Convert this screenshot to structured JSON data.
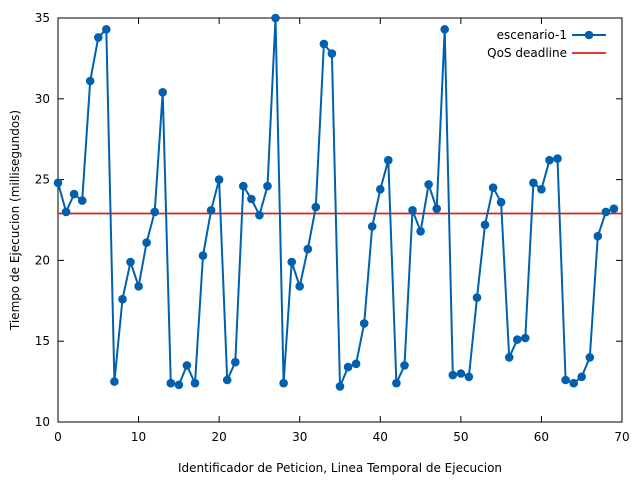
{
  "chart_data": {
    "type": "line",
    "title": "",
    "xlabel": "Identificador de Peticion, Linea Temporal de Ejecucion",
    "ylabel": "Tiempo de Ejecucion (millisegundos)",
    "xlim": [
      0,
      70
    ],
    "ylim": [
      10,
      35
    ],
    "x_ticks": [
      0,
      10,
      20,
      30,
      40,
      50,
      60,
      70
    ],
    "y_ticks": [
      10,
      15,
      20,
      25,
      30,
      35
    ],
    "grid": false,
    "legend_position": "top-right",
    "series": [
      {
        "name": "escenario-1",
        "color": "#0060ad",
        "marker": "circle",
        "x": [
          0,
          1,
          2,
          3,
          4,
          5,
          6,
          7,
          8,
          9,
          10,
          11,
          12,
          13,
          14,
          15,
          16,
          17,
          18,
          19,
          20,
          21,
          22,
          23,
          24,
          25,
          26,
          27,
          28,
          29,
          30,
          31,
          32,
          33,
          34,
          35,
          36,
          37,
          38,
          39,
          40,
          41,
          42,
          43,
          44,
          45,
          46,
          47,
          48,
          49,
          50,
          51,
          52,
          53,
          54,
          55,
          56,
          57,
          58,
          59,
          60,
          61,
          62,
          63,
          64,
          65,
          66,
          67,
          68,
          69
        ],
        "y": [
          24.8,
          23.0,
          24.1,
          23.7,
          31.1,
          33.8,
          34.3,
          12.5,
          17.6,
          19.9,
          18.4,
          21.1,
          23.0,
          30.4,
          12.4,
          12.3,
          13.5,
          12.4,
          20.3,
          23.1,
          25.0,
          12.6,
          13.7,
          24.6,
          23.8,
          22.8,
          24.6,
          35.0,
          12.4,
          19.9,
          18.4,
          20.7,
          23.3,
          33.4,
          32.8,
          12.2,
          13.4,
          13.6,
          16.1,
          22.1,
          24.4,
          26.2,
          12.4,
          13.5,
          23.1,
          21.8,
          24.7,
          23.2,
          34.3,
          12.9,
          13.0,
          12.8,
          17.7,
          22.2,
          24.5,
          23.6,
          14.0,
          15.1,
          15.2,
          24.8,
          24.4,
          26.2,
          26.3,
          12.6,
          12.4,
          12.8,
          14.0,
          21.5,
          23.0,
          23.2
        ]
      },
      {
        "name": "QoS deadline",
        "color": "#e0201b",
        "marker": "none",
        "x": [
          0,
          70
        ],
        "y": [
          22.9,
          22.9
        ]
      }
    ]
  }
}
